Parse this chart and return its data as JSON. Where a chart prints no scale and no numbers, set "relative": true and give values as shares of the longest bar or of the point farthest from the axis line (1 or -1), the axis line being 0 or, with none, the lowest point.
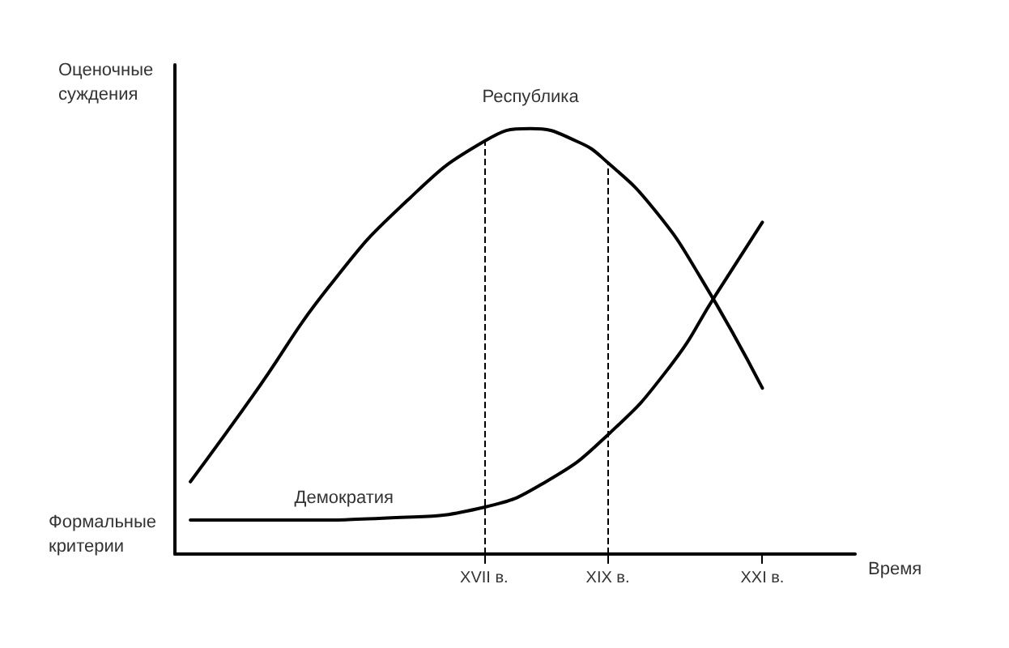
{
  "chart_data": {
    "type": "line",
    "relative": true,
    "xlabel": "Время",
    "categories": [
      null,
      null,
      null,
      null,
      null,
      null,
      null,
      null,
      null,
      null,
      null,
      null,
      null,
      null,
      null,
      null,
      null,
      null,
      null,
      null,
      "XVII в.",
      null,
      null,
      null,
      null,
      null,
      null,
      null,
      "XIX в.",
      null,
      null,
      null,
      null,
      null,
      null,
      null,
      null,
      null,
      "XXI в.",
      null,
      null,
      null,
      null,
      null,
      null
    ],
    "series": [
      {
        "name": "Республика",
        "color": "#000000",
        "values": [
          null,
          0.17,
          null,
          null,
          null,
          0.37,
          null,
          null,
          null,
          null,
          0.63,
          null,
          null,
          null,
          null,
          0.83,
          null,
          null,
          null,
          null,
          0.97,
          null,
          null,
          1.0,
          null,
          null,
          0.97,
          null,
          0.92,
          null,
          null,
          0.81,
          null,
          null,
          0.65,
          null,
          null,
          null,
          0.39,
          null,
          null,
          null,
          null,
          null,
          null
        ]
      },
      {
        "name": "Демократия",
        "color": "#000000",
        "values": [
          null,
          0.08,
          null,
          null,
          null,
          null,
          null,
          null,
          0.08,
          null,
          null,
          null,
          null,
          null,
          0.085,
          null,
          null,
          null,
          null,
          null,
          0.11,
          null,
          null,
          null,
          0.17,
          null,
          null,
          null,
          0.28,
          null,
          null,
          null,
          0.44,
          null,
          null,
          0.61,
          null,
          null,
          0.78,
          null,
          null,
          null,
          null,
          null,
          null
        ]
      }
    ],
    "ref_lines": [
      {
        "axis": "x",
        "value": "XVII в.",
        "line_style": "dashed"
      },
      {
        "axis": "x",
        "value": "XIX в.",
        "line_style": "dashed"
      }
    ],
    "annotations": [
      "Оценочные суждения",
      "Формальные критерии"
    ],
    "marker": "none",
    "line_style": "solid",
    "grid": false,
    "legend": false
  }
}
